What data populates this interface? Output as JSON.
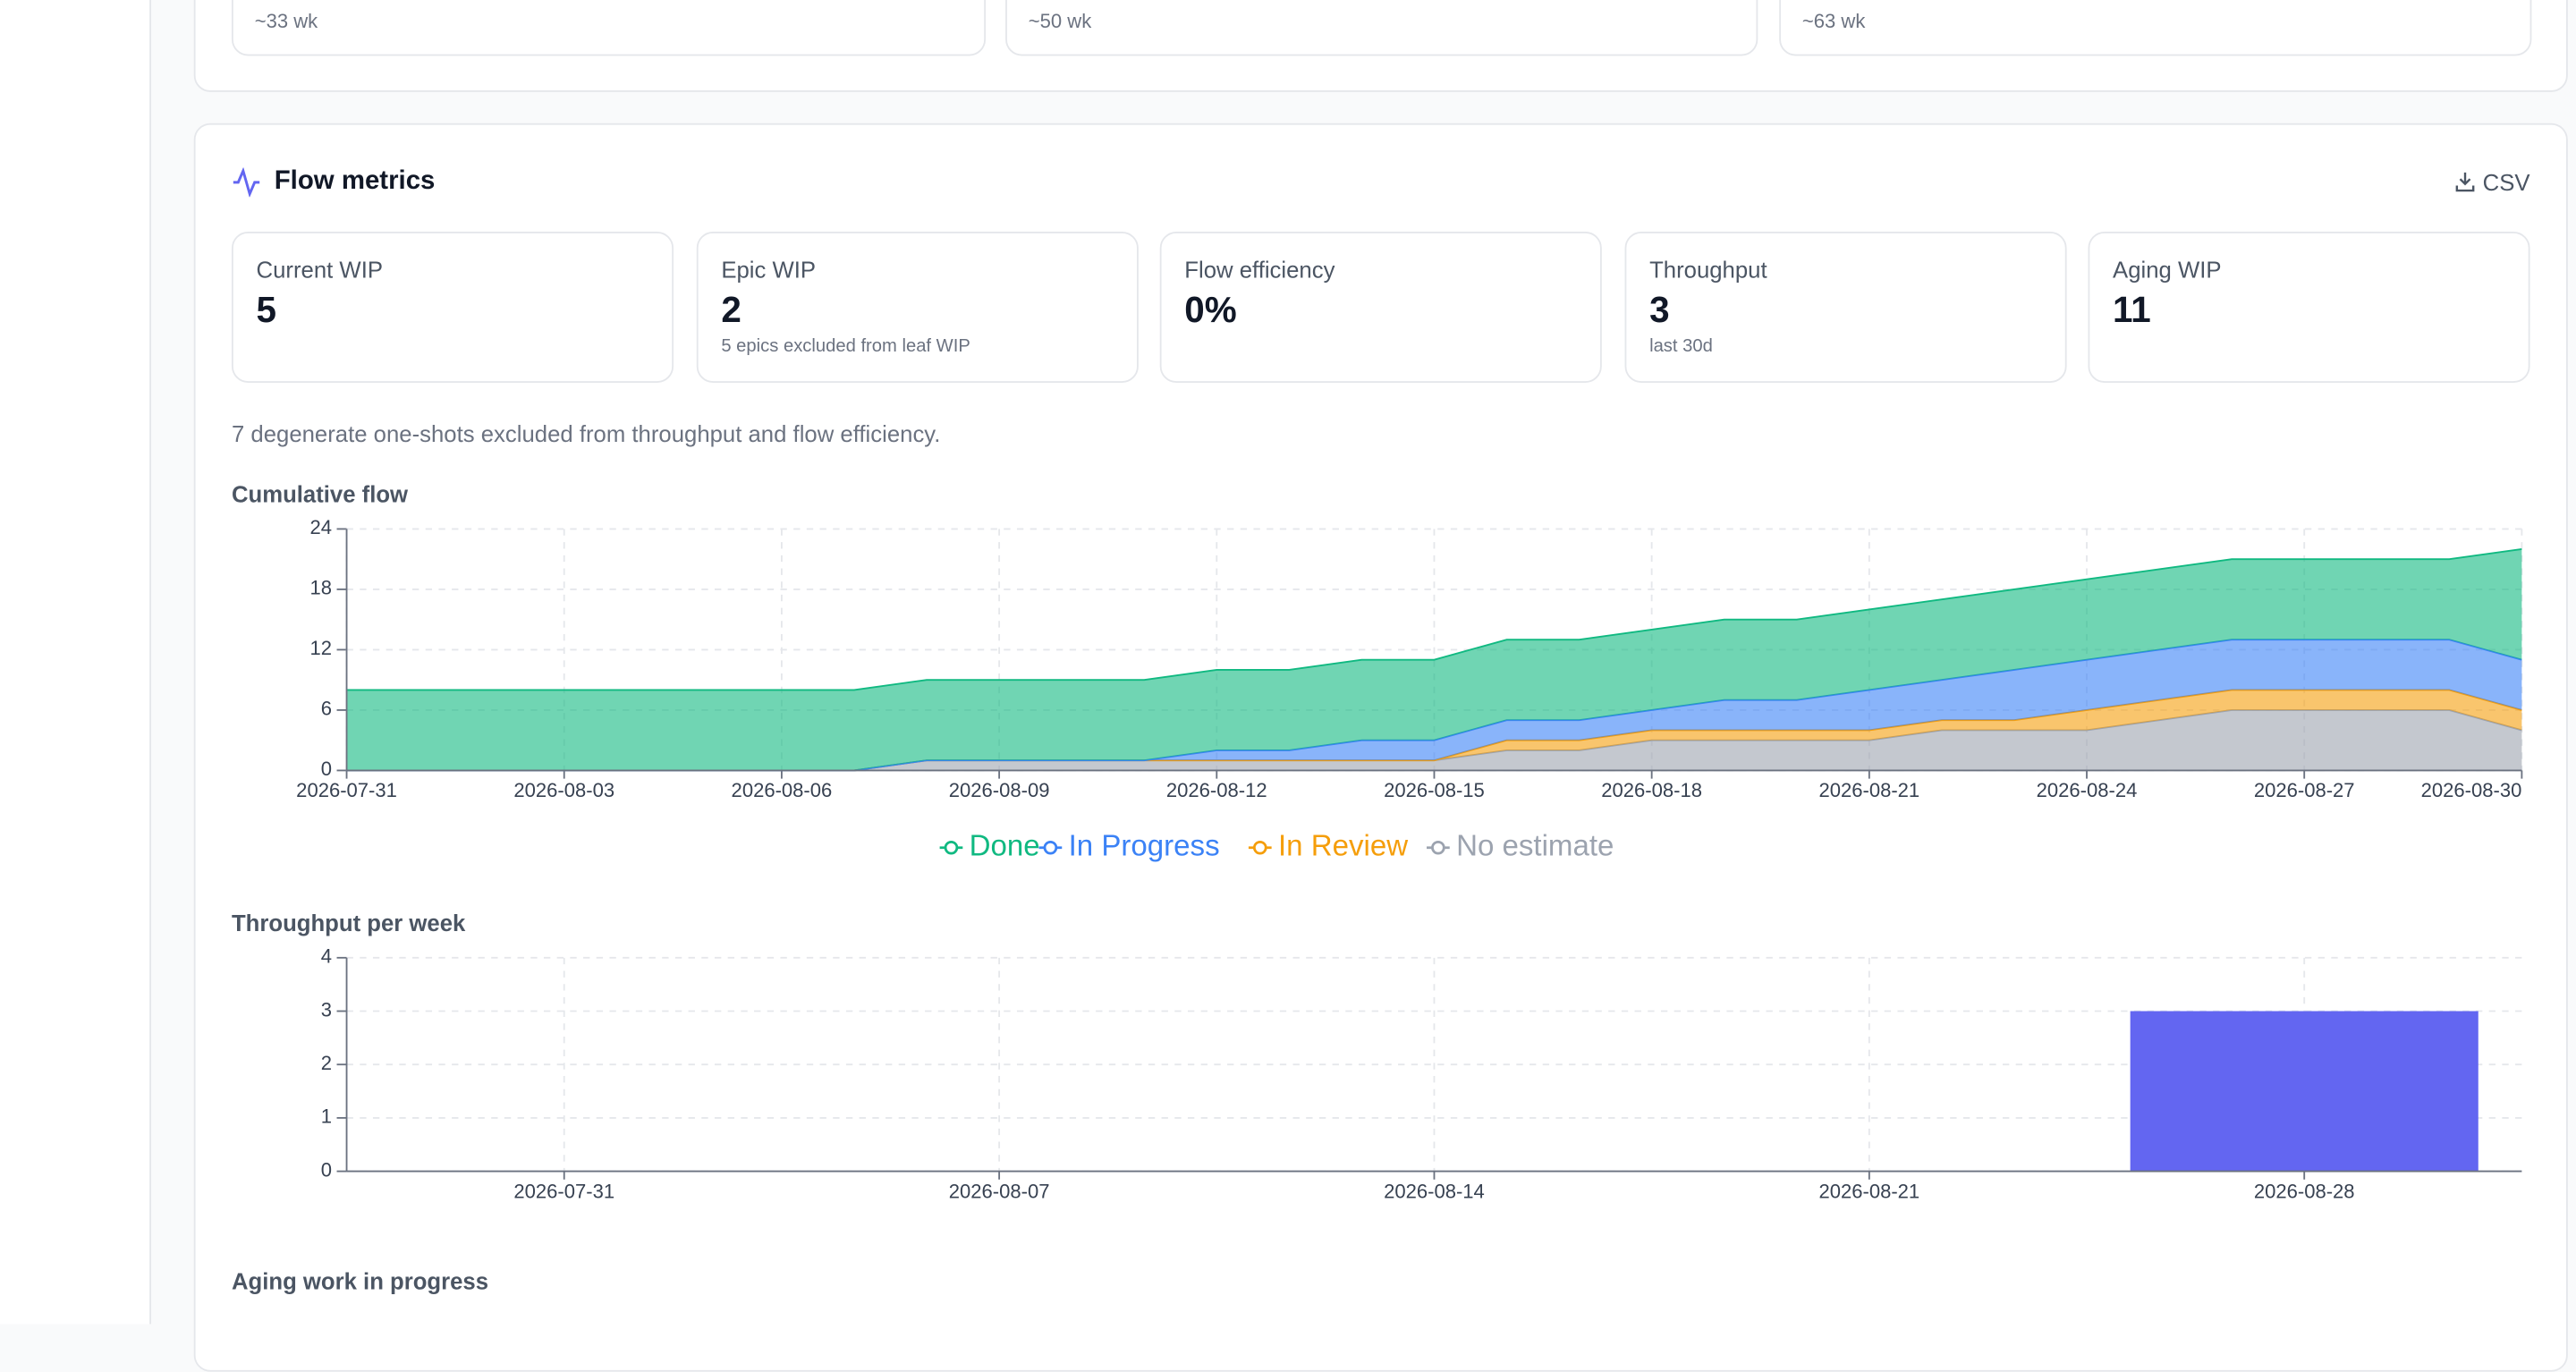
{
  "top_cards": [
    {
      "sub": "~33 wk"
    },
    {
      "sub": "~50 wk"
    },
    {
      "sub": "~63 wk"
    }
  ],
  "panel": {
    "title": "Flow metrics",
    "export": "CSV"
  },
  "metrics": [
    {
      "label": "Current WIP",
      "value": "5"
    },
    {
      "label": "Epic WIP",
      "value": "2",
      "note": "5 epics excluded from leaf WIP"
    },
    {
      "label": "Flow efficiency",
      "value": "0%"
    },
    {
      "label": "Throughput",
      "value": "3",
      "note": "last 30d"
    },
    {
      "label": "Aging WIP",
      "value": "11"
    }
  ],
  "note": "7 degenerate one-shots excluded from throughput and flow efficiency.",
  "next_section": "Aging work in progress",
  "chart_data": [
    {
      "type": "area",
      "title": "Cumulative flow",
      "stacked": true,
      "grid": true,
      "x": [
        "2026-07-31",
        "2026-08-01",
        "2026-08-02",
        "2026-08-03",
        "2026-08-04",
        "2026-08-05",
        "2026-08-06",
        "2026-08-07",
        "2026-08-08",
        "2026-08-09",
        "2026-08-10",
        "2026-08-11",
        "2026-08-12",
        "2026-08-13",
        "2026-08-14",
        "2026-08-15",
        "2026-08-16",
        "2026-08-17",
        "2026-08-18",
        "2026-08-19",
        "2026-08-20",
        "2026-08-21",
        "2026-08-22",
        "2026-08-23",
        "2026-08-24",
        "2026-08-25",
        "2026-08-26",
        "2026-08-27",
        "2026-08-28",
        "2026-08-29",
        "2026-08-30"
      ],
      "ylim": [
        0,
        24
      ],
      "yticks": [
        0,
        6,
        12,
        18,
        24
      ],
      "series": [
        {
          "name": "Done",
          "color": "#10b981",
          "values": [
            8,
            8,
            8,
            8,
            8,
            8,
            8,
            8,
            8,
            8,
            8,
            8,
            8,
            8,
            8,
            8,
            8,
            8,
            8,
            8,
            8,
            8,
            8,
            8,
            8,
            8,
            8,
            8,
            8,
            8,
            11
          ]
        },
        {
          "name": "In Progress",
          "color": "#3b82f6",
          "values": [
            0,
            0,
            0,
            0,
            0,
            0,
            0,
            0,
            0,
            0,
            0,
            0,
            1,
            1,
            2,
            2,
            2,
            2,
            2,
            3,
            3,
            4,
            4,
            5,
            5,
            5,
            5,
            5,
            5,
            5,
            5
          ]
        },
        {
          "name": "In Review",
          "color": "#f59e0b",
          "values": [
            0,
            0,
            0,
            0,
            0,
            0,
            0,
            0,
            0,
            0,
            0,
            0,
            0,
            0,
            0,
            0,
            1,
            1,
            1,
            1,
            1,
            1,
            1,
            1,
            2,
            2,
            2,
            2,
            2,
            2,
            2
          ]
        },
        {
          "name": "No estimate",
          "color": "#9ca3af",
          "values": [
            0,
            0,
            0,
            0,
            0,
            0,
            0,
            0,
            1,
            1,
            1,
            1,
            1,
            1,
            1,
            1,
            2,
            2,
            3,
            3,
            3,
            3,
            4,
            4,
            4,
            5,
            6,
            6,
            6,
            6,
            4
          ]
        }
      ]
    },
    {
      "type": "bar",
      "title": "Throughput per week",
      "grid": true,
      "color": "#6366f1",
      "categories": [
        "2026-07-31",
        "2026-08-07",
        "2026-08-14",
        "2026-08-21",
        "2026-08-28"
      ],
      "values": [
        0,
        0,
        0,
        0,
        3
      ],
      "ylim": [
        0,
        4
      ],
      "yticks": [
        0,
        1,
        2,
        3,
        4
      ]
    }
  ]
}
